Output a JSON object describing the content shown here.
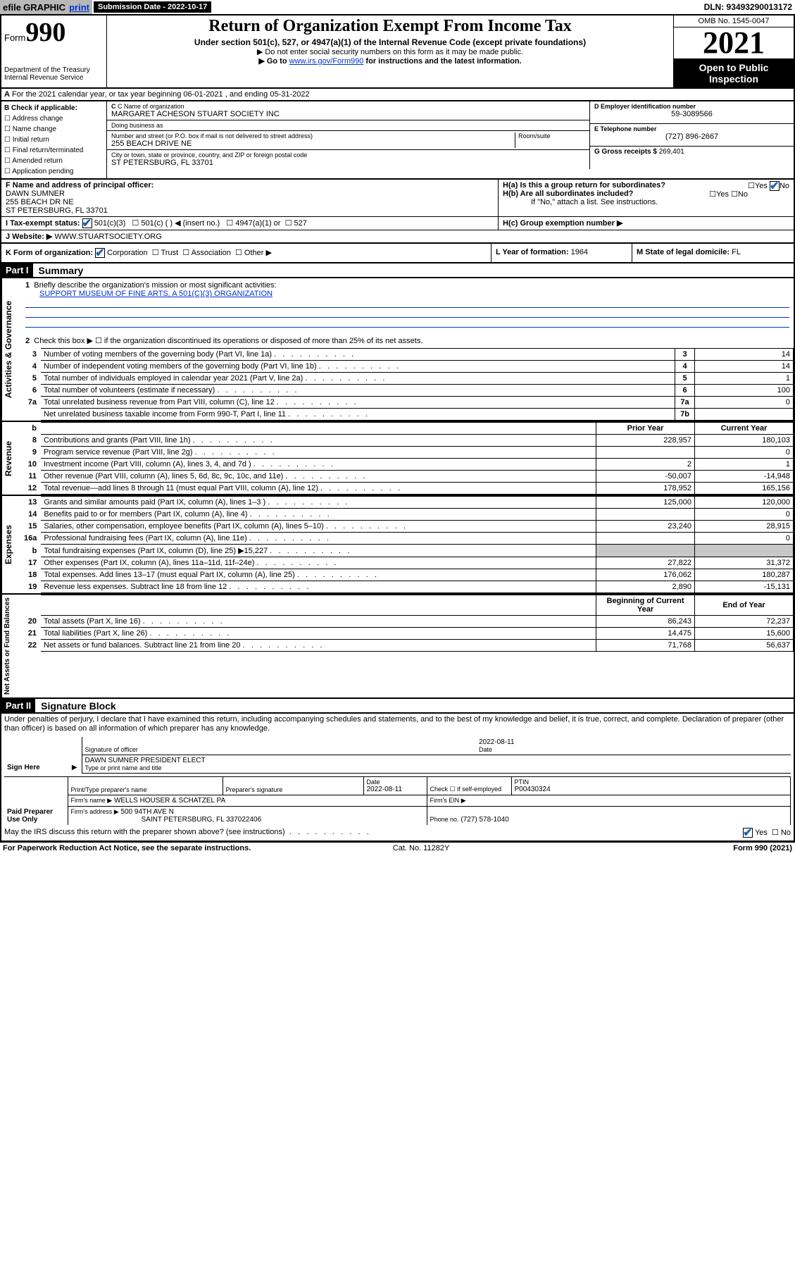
{
  "topbar": {
    "efile": "efile",
    "graphic": "GRAPHIC",
    "print": "print",
    "submission_label": "Submission Date - 2022-10-17",
    "dln": "DLN: 93493290013172"
  },
  "header": {
    "form_prefix": "Form",
    "form_number": "990",
    "dept": "Department of the Treasury",
    "irs": "Internal Revenue Service",
    "title": "Return of Organization Exempt From Income Tax",
    "sub1": "Under section 501(c), 527, or 4947(a)(1) of the Internal Revenue Code (except private foundations)",
    "sub2": "▶ Do not enter social security numbers on this form as it may be made public.",
    "sub3_pre": "▶ Go to ",
    "sub3_link": "www.irs.gov/Form990",
    "sub3_post": " for instructions and the latest information.",
    "omb": "OMB No. 1545-0047",
    "year": "2021",
    "open": "Open to Public Inspection"
  },
  "lineA": "For the 2021 calendar year, or tax year beginning 06-01-2021   , and ending 05-31-2022",
  "boxB": {
    "label": "B Check if applicable:",
    "items": [
      "Address change",
      "Name change",
      "Initial return",
      "Final return/terminated",
      "Amended return",
      "Application pending"
    ]
  },
  "boxC": {
    "name_label": "C Name of organization",
    "name": "MARGARET ACHESON STUART SOCIETY INC",
    "dba_label": "Doing business as",
    "dba": "",
    "addr_label": "Number and street (or P.O. box if mail is not delivered to street address)",
    "room_label": "Room/suite",
    "addr": "255 BEACH DRIVE NE",
    "city_label": "City or town, state or province, country, and ZIP or foreign postal code",
    "city": "ST PETERSBURG, FL  33701"
  },
  "boxD": {
    "label": "D Employer identification number",
    "val": "59-3089566"
  },
  "boxE": {
    "label": "E Telephone number",
    "val": "(727) 896-2667"
  },
  "boxG": {
    "label": "G Gross receipts $",
    "val": "269,401"
  },
  "boxF": {
    "label": "F  Name and address of principal officer:",
    "name": "DAWN SUMNER",
    "addr1": "255 BEACH DR NE",
    "addr2": "ST PETERSBURG, FL  33701"
  },
  "boxH": {
    "ha": "H(a)  Is this a group return for subordinates?",
    "hb": "H(b)  Are all subordinates included?",
    "hb_note": "If \"No,\" attach a list. See instructions.",
    "hc": "H(c)  Group exemption number ▶",
    "yes": "Yes",
    "no": "No"
  },
  "lineI": {
    "label": "I    Tax-exempt status:",
    "opt1": "501(c)(3)",
    "opt2": "501(c) (   ) ◀ (insert no.)",
    "opt3": "4947(a)(1) or",
    "opt4": "527"
  },
  "lineJ": {
    "label": "J    Website: ▶",
    "val": "WWW.STUARTSOCIETY.ORG"
  },
  "lineK": {
    "label": "K Form of organization:",
    "opts": [
      "Corporation",
      "Trust",
      "Association",
      "Other ▶"
    ]
  },
  "lineL": {
    "label": "L Year of formation:",
    "val": "1964"
  },
  "lineM": {
    "label": "M State of legal domicile:",
    "val": "FL"
  },
  "part1": {
    "hdr": "Part I",
    "title": "Summary"
  },
  "summary": {
    "q1": "Briefly describe the organization's mission or most significant activities:",
    "mission": "SUPPORT MUSEUM OF FINE ARTS, A 501(C)(3) ORGANIZATION",
    "q2": "Check this box ▶ ☐  if the organization discontinued its operations or disposed of more than 25% of its net assets.",
    "rows_gov": [
      {
        "n": "3",
        "t": "Number of voting members of the governing body (Part VI, line 1a)",
        "box": "3",
        "v": "14"
      },
      {
        "n": "4",
        "t": "Number of independent voting members of the governing body (Part VI, line 1b)",
        "box": "4",
        "v": "14"
      },
      {
        "n": "5",
        "t": "Total number of individuals employed in calendar year 2021 (Part V, line 2a)",
        "box": "5",
        "v": "1"
      },
      {
        "n": "6",
        "t": "Total number of volunteers (estimate if necessary)",
        "box": "6",
        "v": "100"
      },
      {
        "n": "7a",
        "t": "Total unrelated business revenue from Part VIII, column (C), line 12",
        "box": "7a",
        "v": "0"
      },
      {
        "n": "",
        "t": "Net unrelated business taxable income from Form 990-T, Part I, line 11",
        "box": "7b",
        "v": ""
      }
    ],
    "col_hdrs": {
      "n": "b",
      "prior": "Prior Year",
      "current": "Current Year"
    },
    "rev_rows": [
      {
        "n": "8",
        "t": "Contributions and grants (Part VIII, line 1h)",
        "p": "228,957",
        "c": "180,103"
      },
      {
        "n": "9",
        "t": "Program service revenue (Part VIII, line 2g)",
        "p": "",
        "c": "0"
      },
      {
        "n": "10",
        "t": "Investment income (Part VIII, column (A), lines 3, 4, and 7d )",
        "p": "2",
        "c": "1"
      },
      {
        "n": "11",
        "t": "Other revenue (Part VIII, column (A), lines 5, 6d, 8c, 9c, 10c, and 11e)",
        "p": "-50,007",
        "c": "-14,948"
      },
      {
        "n": "12",
        "t": "Total revenue—add lines 8 through 11 (must equal Part VIII, column (A), line 12)",
        "p": "178,952",
        "c": "165,156"
      }
    ],
    "exp_rows": [
      {
        "n": "13",
        "t": "Grants and similar amounts paid (Part IX, column (A), lines 1–3 )",
        "p": "125,000",
        "c": "120,000"
      },
      {
        "n": "14",
        "t": "Benefits paid to or for members (Part IX, column (A), line 4)",
        "p": "",
        "c": "0"
      },
      {
        "n": "15",
        "t": "Salaries, other compensation, employee benefits (Part IX, column (A), lines 5–10)",
        "p": "23,240",
        "c": "28,915"
      },
      {
        "n": "16a",
        "t": "Professional fundraising fees (Part IX, column (A), line 11e)",
        "p": "",
        "c": "0"
      },
      {
        "n": "b",
        "t": "Total fundraising expenses (Part IX, column (D), line 25) ▶15,227",
        "p": "SHADE",
        "c": "SHADE"
      },
      {
        "n": "17",
        "t": "Other expenses (Part IX, column (A), lines 11a–11d, 11f–24e)",
        "p": "27,822",
        "c": "31,372"
      },
      {
        "n": "18",
        "t": "Total expenses. Add lines 13–17 (must equal Part IX, column (A), line 25)",
        "p": "176,062",
        "c": "180,287"
      },
      {
        "n": "19",
        "t": "Revenue less expenses. Subtract line 18 from line 12",
        "p": "2,890",
        "c": "-15,131"
      }
    ],
    "na_hdrs": {
      "p": "Beginning of Current Year",
      "c": "End of Year"
    },
    "na_rows": [
      {
        "n": "20",
        "t": "Total assets (Part X, line 16)",
        "p": "86,243",
        "c": "72,237"
      },
      {
        "n": "21",
        "t": "Total liabilities (Part X, line 26)",
        "p": "14,475",
        "c": "15,600"
      },
      {
        "n": "22",
        "t": "Net assets or fund balances. Subtract line 21 from line 20",
        "p": "71,768",
        "c": "56,637"
      }
    ],
    "vtabs": {
      "gov": "Activities & Governance",
      "rev": "Revenue",
      "exp": "Expenses",
      "na": "Net Assets or Fund Balances"
    }
  },
  "part2": {
    "hdr": "Part II",
    "title": "Signature Block"
  },
  "sig": {
    "decl": "Under penalties of perjury, I declare that I have examined this return, including accompanying schedules and statements, and to the best of my knowledge and belief, it is true, correct, and complete. Declaration of preparer (other than officer) is based on all information of which preparer has any knowledge.",
    "sign_here": "Sign Here",
    "sig_officer": "Signature of officer",
    "date": "Date",
    "date_val": "2022-08-11",
    "officer_name": "DAWN SUMNER PRESIDENT ELECT",
    "officer_label": "Type or print name and title",
    "paid": "Paid Preparer Use Only",
    "prep_name": "Print/Type preparer's name",
    "prep_sig": "Preparer's signature",
    "prep_date": "Date",
    "prep_date_val": "2022-08-11",
    "check_self": "Check ☐ if self-employed",
    "ptin": "PTIN",
    "ptin_val": "P00430324",
    "firm_name": "Firm's name    ▶",
    "firm_name_val": "WELLS HOUSER & SCHATZEL PA",
    "firm_ein": "Firm's EIN ▶",
    "firm_addr": "Firm's address ▶",
    "firm_addr_val1": "500 94TH AVE N",
    "firm_addr_val2": "SAINT PETERSBURG, FL  337022406",
    "phone": "Phone no.",
    "phone_val": "(727) 578-1040",
    "discuss": "May the IRS discuss this return with the preparer shown above? (see instructions)"
  },
  "footer": {
    "left": "For Paperwork Reduction Act Notice, see the separate instructions.",
    "mid": "Cat. No. 11282Y",
    "right": "Form 990 (2021)"
  }
}
